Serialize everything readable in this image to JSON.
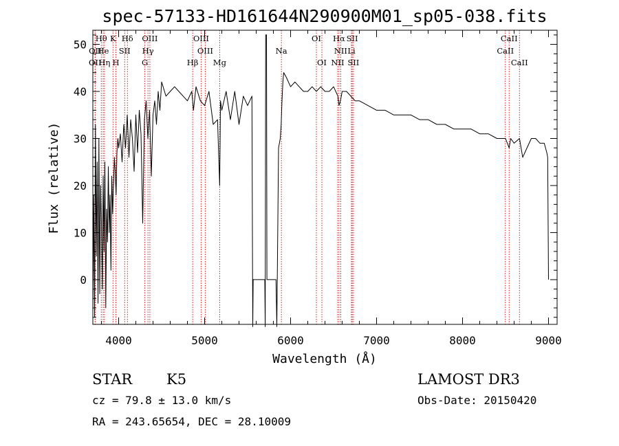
{
  "chart_data": {
    "type": "line",
    "title": "spec-57133-HD161644N290900M01_sp05-038.fits",
    "xlabel": "Wavelength (Å)",
    "ylabel": "Flux (relative)",
    "xlim": [
      3700,
      9100
    ],
    "ylim": [
      -9.5,
      53
    ],
    "x_ticks": [
      4000,
      5000,
      6000,
      7000,
      8000,
      9000
    ],
    "y_ticks": [
      0,
      10,
      20,
      30,
      40,
      50
    ],
    "spectrum": {
      "x": [
        3700,
        3710,
        3720,
        3730,
        3740,
        3750,
        3760,
        3770,
        3780,
        3790,
        3800,
        3810,
        3820,
        3830,
        3840,
        3850,
        3860,
        3870,
        3880,
        3890,
        3900,
        3910,
        3920,
        3930,
        3940,
        3950,
        3960,
        3970,
        3980,
        3990,
        4000,
        4020,
        4040,
        4060,
        4080,
        4100,
        4120,
        4140,
        4160,
        4180,
        4200,
        4220,
        4240,
        4260,
        4280,
        4300,
        4320,
        4340,
        4360,
        4380,
        4400,
        4420,
        4440,
        4460,
        4480,
        4500,
        4550,
        4600,
        4650,
        4700,
        4750,
        4800,
        4850,
        4870,
        4900,
        4950,
        5000,
        5050,
        5100,
        5150,
        5175,
        5185,
        5200,
        5250,
        5300,
        5350,
        5400,
        5450,
        5500,
        5550,
        5560,
        5565,
        5570,
        5700,
        5705,
        5710,
        5720,
        5725,
        5730,
        5830,
        5840,
        5860,
        5880,
        5890,
        5900,
        5910,
        5920,
        5950,
        6000,
        6050,
        6100,
        6150,
        6200,
        6250,
        6300,
        6350,
        6400,
        6450,
        6500,
        6550,
        6563,
        6580,
        6600,
        6650,
        6700,
        6750,
        6800,
        6900,
        7000,
        7100,
        7200,
        7300,
        7400,
        7500,
        7600,
        7700,
        7800,
        7900,
        8000,
        8100,
        8200,
        8300,
        8400,
        8500,
        8542,
        8560,
        8600,
        8662,
        8700,
        8800,
        8850,
        8900,
        8950,
        8980,
        8990,
        9000
      ],
      "flux": [
        -7,
        18,
        -8,
        33,
        5,
        25,
        -5,
        30,
        -3,
        20,
        12,
        -2,
        22,
        6,
        25,
        -6,
        15,
        8,
        24,
        10,
        18,
        2,
        22,
        14,
        20,
        26,
        23,
        18,
        27,
        30,
        28,
        31,
        25,
        33,
        28,
        35,
        26,
        34,
        30,
        23,
        35,
        27,
        36,
        31,
        12,
        34,
        38,
        30,
        36,
        22,
        35,
        38,
        33,
        40,
        36,
        42,
        39,
        40,
        41,
        40,
        39,
        38,
        40,
        36,
        41,
        38,
        37,
        40,
        33,
        34,
        20,
        38,
        36,
        40,
        34,
        40,
        33,
        39,
        37,
        39,
        -10,
        0,
        0,
        0,
        -10,
        52,
        52,
        0,
        0,
        0,
        -10,
        28,
        30,
        33,
        38,
        42,
        44,
        43,
        41,
        42,
        41,
        40,
        40,
        41,
        40,
        41,
        40,
        40,
        41,
        39,
        37,
        38,
        40,
        40,
        39,
        38,
        38,
        37,
        36,
        36,
        35,
        35,
        35,
        34,
        34,
        33,
        33,
        32,
        32,
        32,
        31,
        31,
        30,
        30,
        28,
        30,
        29,
        30,
        26,
        30,
        30,
        29,
        29,
        27,
        26,
        0
      ],
      "color": "#000000"
    },
    "lines": [
      {
        "name": "Hθ",
        "x": 3798,
        "row": 0,
        "color": "#cc0000"
      },
      {
        "name": "K",
        "x": 3934,
        "row": 0,
        "color": "#cc0000"
      },
      {
        "name": "Hδ",
        "x": 4102,
        "row": 0,
        "color": "#cc0000"
      },
      {
        "name": "OIII",
        "x": 4363,
        "row": 0,
        "color": "#cc0000"
      },
      {
        "name": "OIII",
        "x": 4959,
        "row": 0,
        "color": "#cc0000"
      },
      {
        "name": "OI",
        "x": 6300,
        "row": 0,
        "color": "#cc0000"
      },
      {
        "name": "Hα",
        "x": 6563,
        "row": 0,
        "color": "#cc0000"
      },
      {
        "name": "SII",
        "x": 6717,
        "row": 0,
        "color": "#cc0000"
      },
      {
        "name": "CaII",
        "x": 8542,
        "row": 0,
        "color": "#cc0000"
      },
      {
        "name": "OII",
        "x": 3727,
        "row": 1,
        "color": "#cc0000"
      },
      {
        "name": "He",
        "x": 3820,
        "row": 1,
        "color": "#cc0000"
      },
      {
        "name": "SII",
        "x": 4070,
        "row": 1,
        "color": "#cc0000"
      },
      {
        "name": "Hγ",
        "x": 4341,
        "row": 1,
        "color": "#cc0000"
      },
      {
        "name": "OIII",
        "x": 5007,
        "row": 1,
        "color": "#cc0000"
      },
      {
        "name": "Na",
        "x": 5893,
        "row": 1,
        "color": "#cc0000"
      },
      {
        "name": "NII",
        "x": 6583,
        "row": 1,
        "color": "#cc0000"
      },
      {
        "name": "Li",
        "x": 6708,
        "row": 1,
        "color": "#cc0000"
      },
      {
        "name": "CaII",
        "x": 8498,
        "row": 1,
        "color": "#cc0000"
      },
      {
        "name": "OII",
        "x": 3726,
        "row": 2,
        "color": "#cc0000"
      },
      {
        "name": "Hη",
        "x": 3835,
        "row": 2,
        "color": "#cc0000"
      },
      {
        "name": "H",
        "x": 3968,
        "row": 2,
        "color": "#cc0000"
      },
      {
        "name": "G",
        "x": 4305,
        "row": 2,
        "color": "#cc0000"
      },
      {
        "name": "Hβ",
        "x": 4861,
        "row": 2,
        "color": "#cc0000"
      },
      {
        "name": "Mg",
        "x": 5175,
        "row": 2,
        "color": "#cc0000"
      },
      {
        "name": "OI",
        "x": 6364,
        "row": 2,
        "color": "#cc0000"
      },
      {
        "name": "NII",
        "x": 6548,
        "row": 2,
        "color": "#cc0000"
      },
      {
        "name": "SII",
        "x": 6731,
        "row": 2,
        "color": "#cc0000"
      },
      {
        "name": "CaII",
        "x": 8662,
        "row": 2,
        "color": "#cc0000"
      }
    ]
  },
  "info": {
    "object_type": "STAR",
    "subclass": "K5",
    "survey": "LAMOST DR3",
    "cz": "cz = 79.8 ± 13.0 km/s",
    "obs_date": "Obs-Date: 20150420",
    "coords": "RA = 243.65654, DEC =  28.10009"
  }
}
